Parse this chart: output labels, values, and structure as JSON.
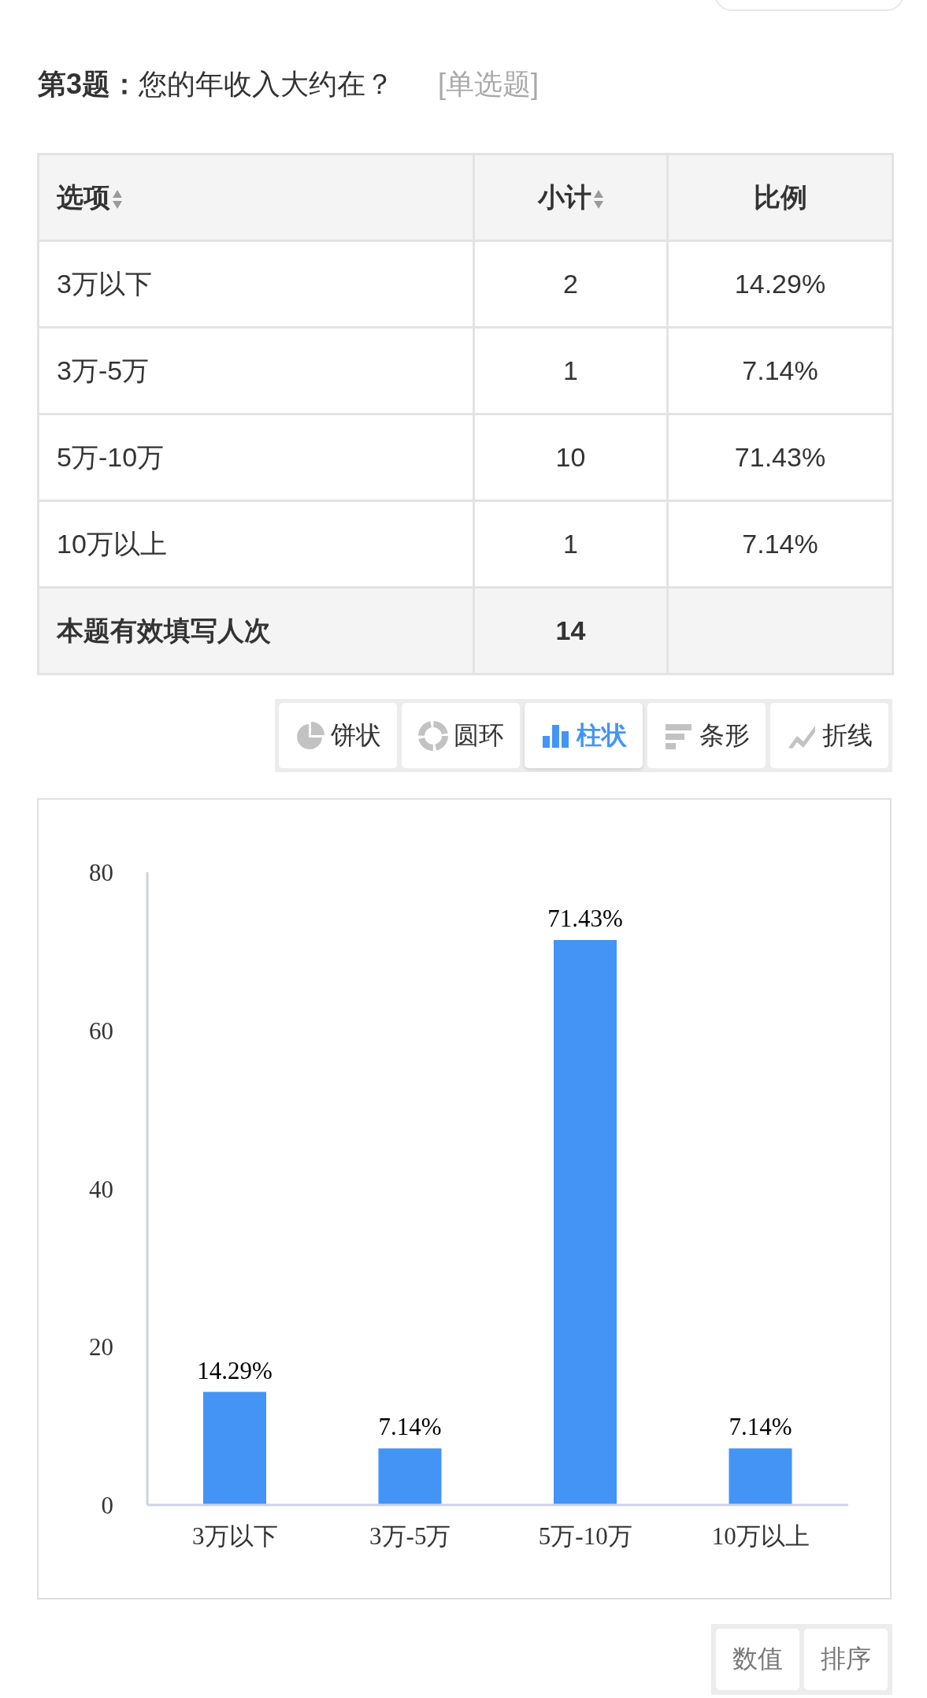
{
  "chart_data": [
    {
      "type": "other",
      "title": "第3题：您的年收入大约在？",
      "subtitle": "[单选题]",
      "xlabel": "选项",
      "categories": [
        "3万以下",
        "3万-5万",
        "5万-10万",
        "10万以上",
        "本题有效填写人次"
      ],
      "series": [
        {
          "name": "小计",
          "colors": [
            "#ffffff",
            "#ffffff",
            "#ffffff",
            "#ffffff",
            "#f4f4f4"
          ],
          "values": [
            2,
            1,
            10,
            1,
            14
          ]
        },
        {
          "name": "比例",
          "colors": [
            "#ffffff",
            "#ffffff",
            "#ffffff",
            "#ffffff",
            "#f4f4f4"
          ],
          "values": [
            14.29,
            7.14,
            71.43,
            7.14,
            null
          ],
          "value_labels": [
            "14.29%",
            "7.14%",
            "71.43%",
            "7.14%",
            null
          ]
        }
      ],
      "data_labels": true
    },
    {
      "type": "bar",
      "categories": [
        "3万以下",
        "3万-5万",
        "5万-10万",
        "10万以上"
      ],
      "values": [
        14.29,
        7.14,
        71.43,
        7.14
      ],
      "value_labels": [
        "14.29%",
        "7.14%",
        "71.43%",
        "7.14%"
      ],
      "color": "#4394f5",
      "ylim": [
        0,
        80
      ],
      "yticks": [
        0,
        20,
        40,
        60,
        80
      ],
      "grid": false,
      "legend": false,
      "annotations": [
        "饼状",
        "圆环",
        "柱状",
        "条形",
        "折线",
        "数值",
        "排序"
      ]
    }
  ]
}
